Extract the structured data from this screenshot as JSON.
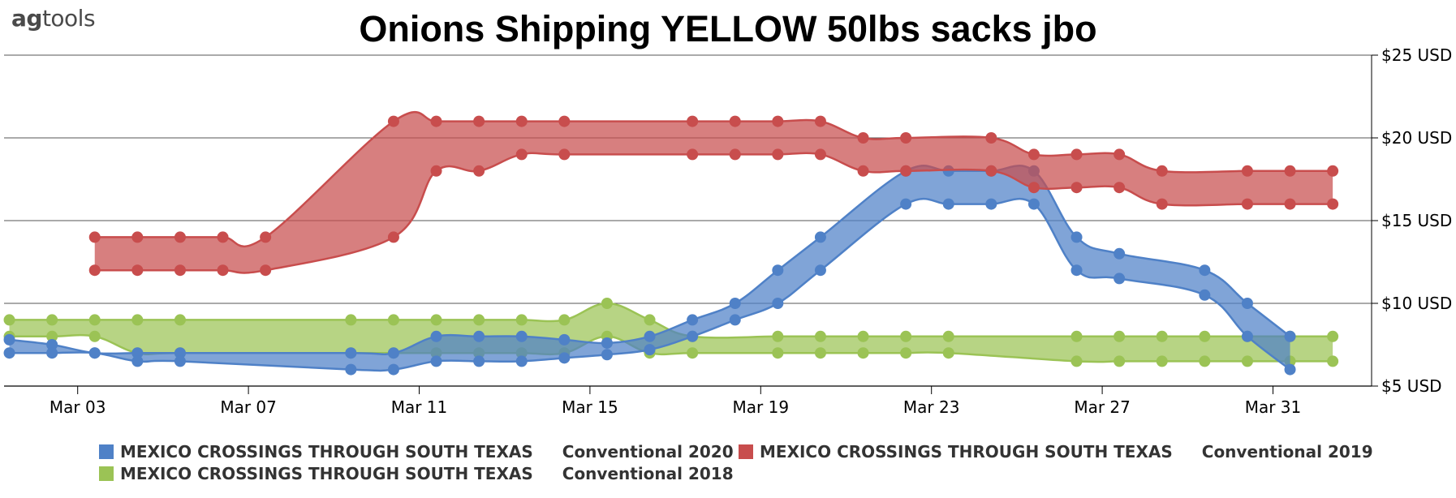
{
  "header": {
    "logo_bold": "ag",
    "logo_rest": "tools",
    "title": "Onions Shipping YELLOW 50lbs sacks jbo"
  },
  "colors": {
    "series_2020": "#4f81c7",
    "series_2019": "#c84d4d",
    "series_2018": "#9bc355"
  },
  "chart_data": {
    "type": "area",
    "subtype": "range-band",
    "title": "Onions Shipping YELLOW 50lbs sacks jbo",
    "y_axis": {
      "min": 5,
      "max": 25,
      "position": "right",
      "tick_labels": [
        "$5 USD",
        "$10 USD",
        "$15 USD",
        "$20 USD",
        "$25 USD"
      ],
      "tick_values": [
        5,
        10,
        15,
        20,
        25
      ]
    },
    "x_axis": {
      "start": "Mar 01",
      "end": "Apr 02",
      "tick_labels": [
        "Mar 03",
        "Mar 07",
        "Mar 11",
        "Mar 15",
        "Mar 19",
        "Mar 23",
        "Mar 27",
        "Mar 31"
      ],
      "tick_days": [
        3,
        7,
        11,
        15,
        19,
        23,
        27,
        31
      ]
    },
    "grid": true,
    "legend_position": "bottom",
    "series": [
      {
        "name": "MEXICO CROSSINGS THROUGH SOUTH TEXAS",
        "subtitle": "Conventional 2020",
        "color": "#4f81c7",
        "days": [
          1.4,
          2.4,
          3.4,
          4.4,
          5.4,
          9.4,
          10.4,
          11.4,
          12.4,
          13.4,
          14.4,
          15.4,
          16.4,
          17.4,
          18.4,
          19.4,
          20.4,
          22.4,
          23.4,
          24.4,
          25.4,
          26.4,
          27.4,
          29.4,
          30.4,
          31.4
        ],
        "low": [
          7,
          7,
          7,
          6.5,
          6.5,
          6,
          6,
          6.5,
          6.5,
          6.5,
          6.7,
          6.9,
          7.2,
          8,
          9,
          10,
          12,
          16,
          16,
          16,
          16,
          12,
          11.5,
          10.5,
          8,
          6
        ],
        "high": [
          7.8,
          7.5,
          7,
          7,
          7,
          7,
          7,
          8,
          8,
          8,
          7.8,
          7.6,
          8,
          9,
          10,
          12,
          14,
          18,
          18,
          18,
          18,
          14,
          13,
          12,
          10,
          8
        ]
      },
      {
        "name": "MEXICO CROSSINGS THROUGH SOUTH TEXAS",
        "subtitle": "Conventional 2019",
        "color": "#c84d4d",
        "days": [
          3.4,
          4.4,
          5.4,
          6.4,
          7.4,
          10.4,
          11.4,
          12.4,
          13.4,
          14.4,
          17.4,
          18.4,
          19.4,
          20.4,
          21.4,
          22.4,
          24.4,
          25.4,
          26.4,
          27.4,
          28.4,
          30.4,
          31.4,
          32.4
        ],
        "low": [
          12,
          12,
          12,
          12,
          12,
          14,
          18,
          18,
          19,
          19,
          19,
          19,
          19,
          19,
          18,
          18,
          18,
          17,
          17,
          17,
          16,
          16,
          16,
          16
        ],
        "high": [
          14,
          14,
          14,
          14,
          14,
          21,
          21,
          21,
          21,
          21,
          21,
          21,
          21,
          21,
          20,
          20,
          20,
          19,
          19,
          19,
          18,
          18,
          18,
          18
        ]
      },
      {
        "name": "MEXICO CROSSINGS THROUGH SOUTH TEXAS",
        "subtitle": "Conventional 2018",
        "color": "#9bc355",
        "days": [
          1.4,
          2.4,
          3.4,
          4.4,
          5.4,
          9.4,
          10.4,
          11.4,
          12.4,
          13.4,
          14.4,
          15.4,
          16.4,
          17.4,
          19.4,
          20.4,
          21.4,
          22.4,
          23.4,
          26.4,
          27.4,
          28.4,
          29.4,
          30.4,
          31.4,
          32.4
        ],
        "low": [
          8,
          8,
          8,
          7,
          7,
          7,
          7,
          7,
          7,
          7,
          7,
          8,
          7,
          7,
          7,
          7,
          7,
          7,
          7,
          6.5,
          6.5,
          6.5,
          6.5,
          6.5,
          6.5,
          6.5
        ],
        "high": [
          9,
          9,
          9,
          9,
          9,
          9,
          9,
          9,
          9,
          9,
          9,
          10,
          9,
          8,
          8,
          8,
          8,
          8,
          8,
          8,
          8,
          8,
          8,
          8,
          8,
          8
        ]
      }
    ]
  }
}
